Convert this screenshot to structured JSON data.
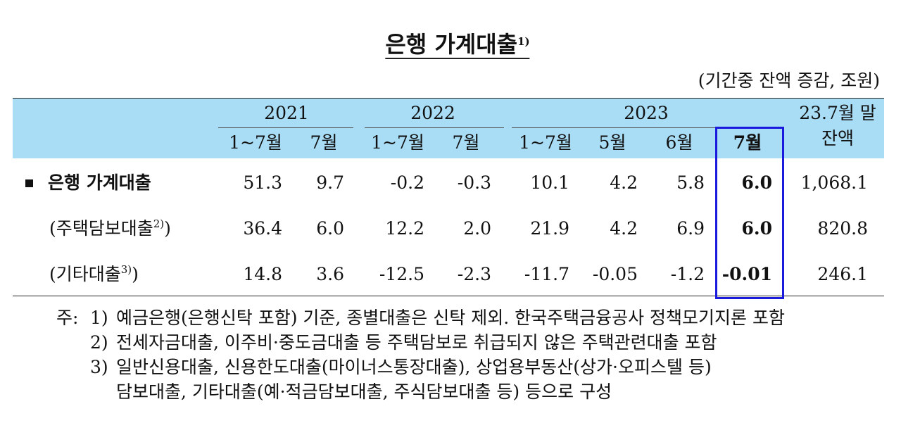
{
  "title": {
    "text": "은행 가계대출",
    "note": "1)"
  },
  "unit": "(기간중 잔액 증감, 조원)",
  "table": {
    "year_headers": [
      "2021",
      "2022",
      "2023"
    ],
    "balance_header": [
      "23.7월 말",
      "잔액"
    ],
    "sub_headers": [
      "1~7월",
      "7월",
      "1~7월",
      "7월",
      "1~7월",
      "5월",
      "6월",
      "7월"
    ],
    "rows": [
      {
        "label": "은행 가계대출",
        "note": null,
        "suffix": null,
        "values": [
          "51.3",
          "9.7",
          "-0.2",
          "-0.3",
          "10.1",
          "4.2",
          "5.8",
          "6.0",
          "1,068.1"
        ]
      },
      {
        "label": "(주택담보대출",
        "note": "2)",
        "suffix": ")",
        "values": [
          "36.4",
          "6.0",
          "12.2",
          "2.0",
          "21.9",
          "4.2",
          "6.9",
          "6.0",
          "820.8"
        ]
      },
      {
        "label": "(기타대출",
        "note": "3)",
        "suffix": ")",
        "values": [
          "14.8",
          "3.6",
          "-12.5",
          "-2.3",
          "-11.7",
          "-0.05",
          "-1.2",
          "-0.01",
          "246.1"
        ]
      }
    ]
  },
  "notes": {
    "prefix": "주:",
    "items": [
      {
        "number": "1)",
        "lines": [
          "예금은행(은행신탁 포함) 기준, 종별대출은 신탁 제외. 한국주택금융공사 정책모기지론 포함"
        ]
      },
      {
        "number": "2)",
        "lines": [
          "전세자금대출, 이주비·중도금대출 등 주택담보로 취급되지 않은 주택관련대출 포함"
        ]
      },
      {
        "number": "3)",
        "lines": [
          "일반신용대출, 신용한도대출(마이너스통장대출), 상업용부동산(상가·오피스텔 등)",
          "담보대출, 기타대출(예·적금담보대출, 주식담보대출 등) 등으로 구성"
        ]
      }
    ]
  }
}
